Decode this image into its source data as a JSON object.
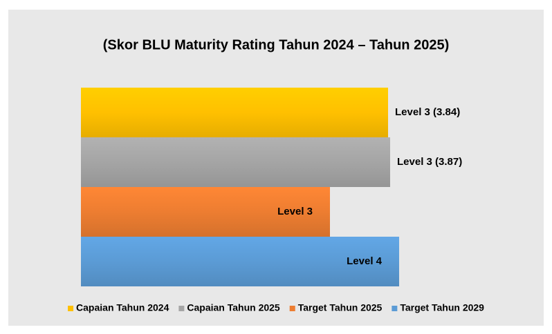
{
  "chart_data": {
    "type": "hbar",
    "title": "(Skor BLU Maturity Rating Tahun 2024 – Tahun 2025)",
    "xlim": [
      -0.6,
      4.2
    ],
    "legend": "bottom",
    "series": [
      {
        "name": "Capaian Tahun 2024",
        "color": "#ffc000",
        "values": [
          3.84
        ],
        "value_labels": [
          "Level 3 (3.84)"
        ],
        "label_position": "outside"
      },
      {
        "name": "Capaian Tahun 2025",
        "color": "#a5a5a5",
        "values": [
          3.87
        ],
        "value_labels": [
          "Level 3 (3.87)"
        ],
        "label_position": "outside"
      },
      {
        "name": "Target Tahun 2025",
        "color": "#ed7d31",
        "values": [
          3
        ],
        "value_labels": [
          "Level 3"
        ],
        "label_position": "inside"
      },
      {
        "name": "Target Tahun 2029",
        "color": "#5b9bd5",
        "values": [
          4
        ],
        "value_labels": [
          "Level 4"
        ],
        "label_position": "inside"
      }
    ]
  }
}
